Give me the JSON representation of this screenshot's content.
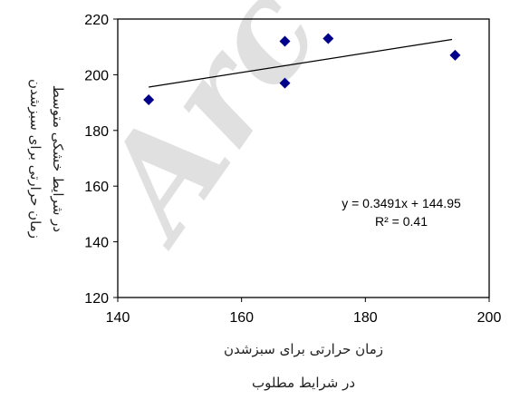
{
  "chart_data": {
    "type": "scatter",
    "xlabel_lines": [
      "زمان حرارتی برای سبزشدن",
      "در شرایط مطلوب"
    ],
    "ylabel_lines": [
      "زمان حرارتی برای سبزشدن",
      "در شرایط خشکی متوسط"
    ],
    "xlim": [
      140,
      200
    ],
    "ylim": [
      120,
      220
    ],
    "xticks": [
      "140",
      "160",
      "180",
      "200"
    ],
    "yticks": [
      "120",
      "140",
      "160",
      "180",
      "200",
      "220"
    ],
    "series": [
      {
        "points": [
          {
            "x": 145,
            "y": 191
          },
          {
            "x": 167,
            "y": 212
          },
          {
            "x": 167,
            "y": 197
          },
          {
            "x": 174,
            "y": 213
          },
          {
            "x": 194.5,
            "y": 207
          }
        ],
        "marker": "diamond",
        "color": "#00008b"
      }
    ],
    "trendline": {
      "slope": 0.3491,
      "intercept": 144.95,
      "x_range": [
        145,
        194
      ],
      "equation_label": "y = 0.3491x + 144.95",
      "r2_label": "R² = 0.41",
      "color": "#000000"
    },
    "grid": false,
    "legend": "none"
  },
  "watermark": {
    "text": "Arc"
  }
}
